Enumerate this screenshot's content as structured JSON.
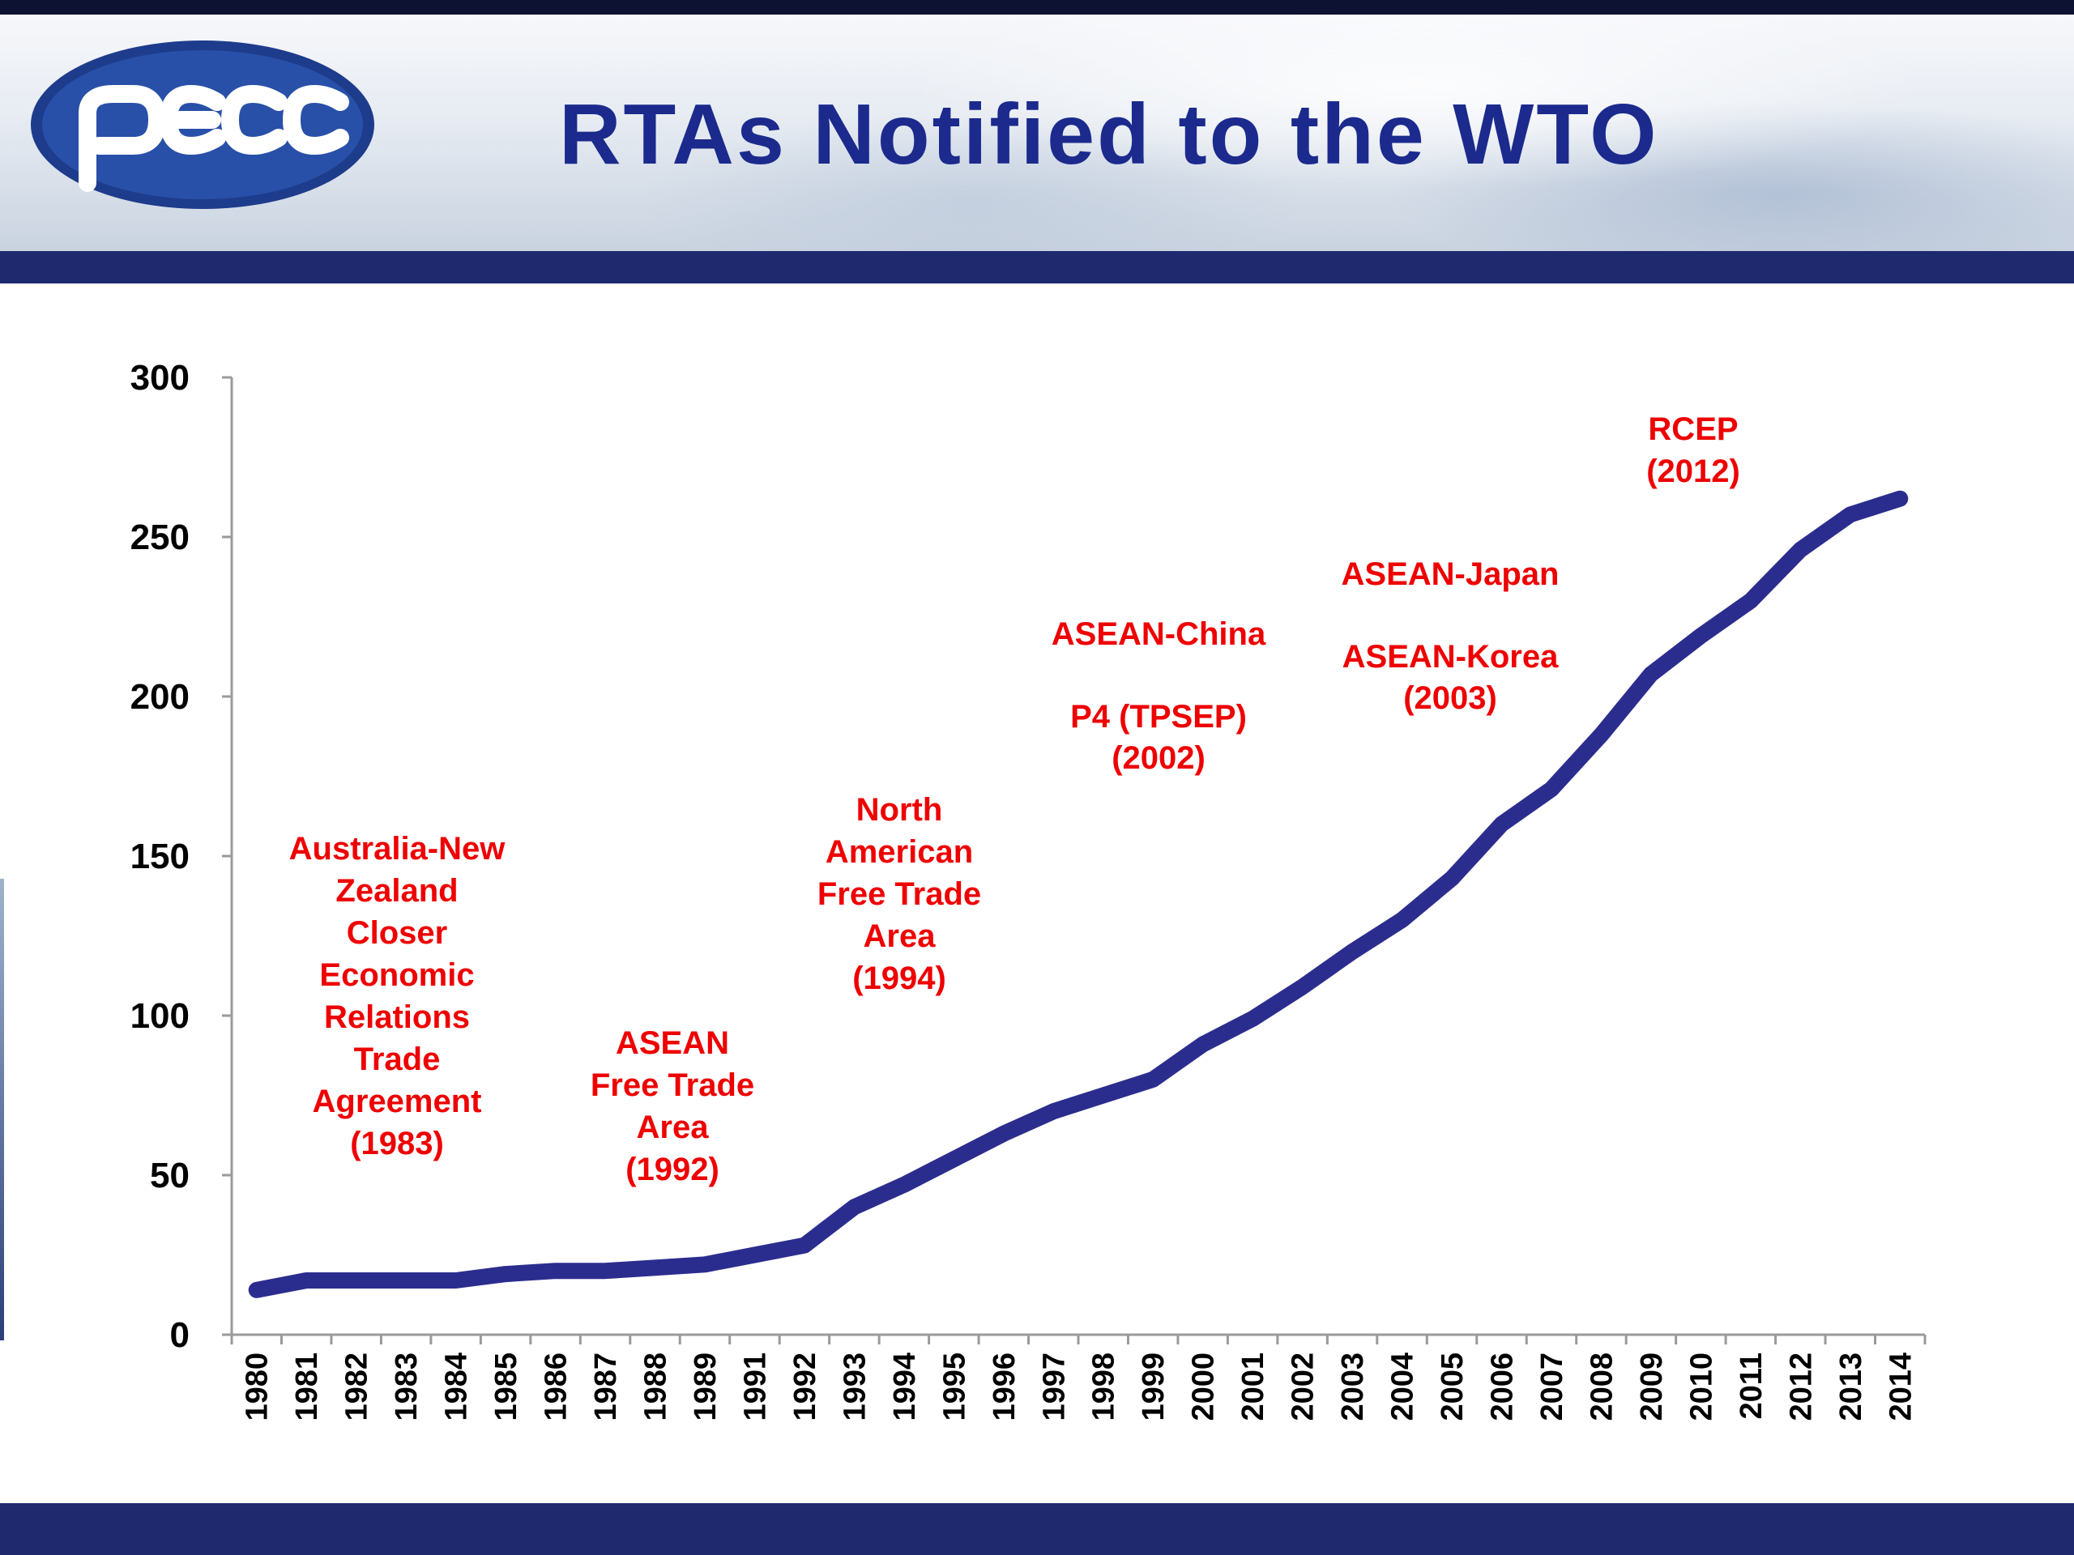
{
  "slide": {
    "title": "RTAs Notified to the WTO",
    "logo_text": "pecc"
  },
  "colors": {
    "title": "#1b2a8c",
    "line": "#2b2d8e",
    "annotation": "#ee0000",
    "band": "#1f2a6e"
  },
  "annotations": [
    {
      "id": "anzcerta",
      "text": "Australia-New\nZealand\nCloser\nEconomic\nRelations\nTrade\nAgreement\n(1983)"
    },
    {
      "id": "afta",
      "text": "ASEAN\nFree Trade\nArea\n(1992)"
    },
    {
      "id": "nafta",
      "text": "North\nAmerican\nFree Trade\nArea\n(1994)"
    },
    {
      "id": "asean-china",
      "text": "ASEAN-China\n\nP4 (TPSEP)\n(2002)"
    },
    {
      "id": "asean-japan-korea",
      "text": "ASEAN-Japan\n\nASEAN-Korea\n(2003)"
    },
    {
      "id": "rcep",
      "text": "RCEP\n(2012)"
    }
  ],
  "chart_data": {
    "type": "line",
    "title": "RTAs Notified to the WTO",
    "xlabel": "",
    "ylabel": "",
    "ylim": [
      0,
      300
    ],
    "yticks": [
      "0",
      "50",
      "100",
      "150",
      "200",
      "250",
      "300"
    ],
    "grid": false,
    "legend": "none",
    "categories": [
      "1980",
      "1981",
      "1982",
      "1983",
      "1984",
      "1985",
      "1986",
      "1987",
      "1988",
      "1989",
      "1991",
      "1992",
      "1993",
      "1994",
      "1995",
      "1996",
      "1997",
      "1998",
      "1999",
      "2000",
      "2001",
      "2002",
      "2003",
      "2004",
      "2005",
      "2006",
      "2007",
      "2008",
      "2009",
      "2010",
      "2011",
      "2012",
      "2013",
      "2014"
    ],
    "series": [
      {
        "values": [
          14,
          17,
          17,
          17,
          17,
          19,
          20,
          20,
          21,
          22,
          25,
          28,
          40,
          47,
          55,
          63,
          70,
          75,
          80,
          91,
          99,
          109,
          120,
          130,
          143,
          160,
          171,
          188,
          207,
          219,
          230,
          246,
          257,
          262
        ]
      }
    ]
  }
}
